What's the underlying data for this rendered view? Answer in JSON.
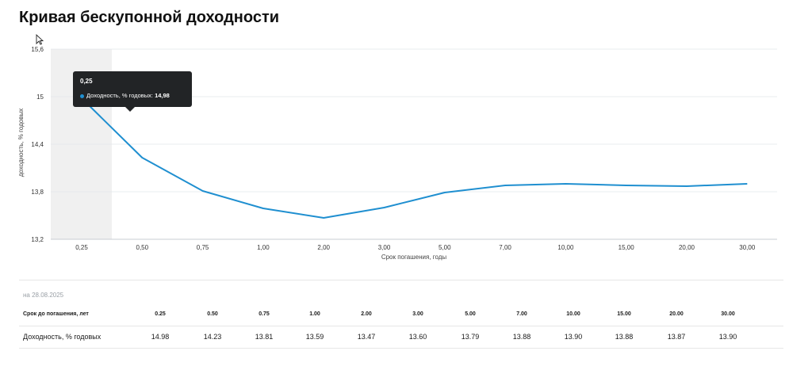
{
  "page": {
    "title": "Кривая бескупонной доходности",
    "as_of": "на 28.08.2025"
  },
  "chart_data": {
    "type": "line",
    "categories": [
      "0,25",
      "0,50",
      "0,75",
      "1,00",
      "2,00",
      "3,00",
      "5,00",
      "7,00",
      "10,00",
      "15,00",
      "20,00",
      "30,00"
    ],
    "series": [
      {
        "name": "Доходность, % годовых",
        "values": [
          14.98,
          14.23,
          13.81,
          13.59,
          13.47,
          13.6,
          13.79,
          13.88,
          13.9,
          13.88,
          13.87,
          13.9
        ]
      }
    ],
    "xlabel": "Срок погашения, годы",
    "ylabel": "доходность, % годовых",
    "ylim": [
      13.2,
      15.6
    ],
    "yticks": [
      "13,2",
      "13,8",
      "14,4",
      "15",
      "15,6"
    ],
    "yticks_values": [
      13.2,
      13.8,
      14.4,
      15.0,
      15.6
    ],
    "grid": true,
    "line_color": "#1f8fd0",
    "highlight_category": "0,25"
  },
  "tooltip": {
    "x_label": "0,25",
    "series_label": "Доходность, % годовых:",
    "value": "14,98"
  },
  "table": {
    "header_label": "Срок до погашения, лет",
    "terms": [
      "0.25",
      "0.50",
      "0.75",
      "1.00",
      "2.00",
      "3.00",
      "5.00",
      "7.00",
      "10.00",
      "15.00",
      "20.00",
      "30.00"
    ],
    "row_label": "Доходность, % годовых",
    "yields": [
      "14.98",
      "14.23",
      "13.81",
      "13.59",
      "13.47",
      "13.60",
      "13.79",
      "13.88",
      "13.90",
      "13.88",
      "13.87",
      "13.90"
    ]
  }
}
